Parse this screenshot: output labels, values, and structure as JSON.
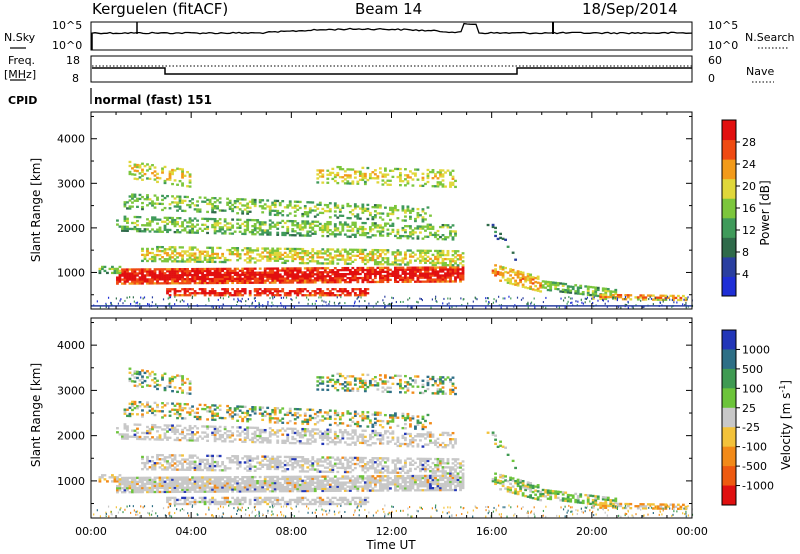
{
  "header": {
    "station": "Kerguelen (fitACF)",
    "beam": "Beam 14",
    "date": "18/Sep/2014"
  },
  "meta": {
    "nsky_label": "N.Sky",
    "nsky_ticks": [
      "10^5",
      "10^0"
    ],
    "nsearch_label": "N.Search",
    "nsearch_ticks": [
      "10^5",
      "10^0"
    ],
    "freq_label_line1": "Freq.",
    "freq_label_line2": "[MHz]",
    "freq_ticks": [
      "18",
      "8"
    ],
    "nave_label": "Nave",
    "nave_ticks": [
      "60",
      "0"
    ],
    "cpid_label": "CPID",
    "cpid_value": "normal (fast) 151"
  },
  "chart_data": [
    {
      "type": "heatmap",
      "name": "power",
      "ylabel": "Slant Range [km]",
      "yticks": [
        "1000",
        "2000",
        "3000",
        "4000"
      ],
      "ylim": [
        180,
        4600
      ],
      "colorbar_label": "Power [dB]",
      "colorbar_ticks": [
        "4",
        "8",
        "12",
        "16",
        "20",
        "24",
        "28"
      ],
      "colorbar_range": [
        0,
        32
      ],
      "palette": [
        "#1f2fd6",
        "#2a3fa0",
        "#2f6a4a",
        "#3f9a5a",
        "#7cc63c",
        "#e0d73a",
        "#f29a1a",
        "#ef4a12",
        "#e20f0f"
      ]
    },
    {
      "type": "heatmap",
      "name": "velocity",
      "ylabel": "Slant Range [km]",
      "yticks": [
        "1000",
        "2000",
        "3000",
        "4000"
      ],
      "ylim": [
        180,
        4600
      ],
      "colorbar_label": "Velocity [m s",
      "colorbar_label_sup": "-1",
      "colorbar_label_end": "]",
      "colorbar_ticks": [
        "1000",
        "500",
        "100",
        "25",
        "-25",
        "-100",
        "-500",
        "-1000"
      ],
      "palette": [
        "#2236b8",
        "#2e6f86",
        "#3f9a52",
        "#6cc43a",
        "#c8c8c8",
        "#f3c23a",
        "#f28a18",
        "#ee5a10",
        "#e01010"
      ],
      "xlabel": "Time UT",
      "xticks": [
        "00:00",
        "04:00",
        "08:00",
        "12:00",
        "16:00",
        "20:00",
        "00:00"
      ],
      "xlim_hours": [
        0,
        24
      ]
    }
  ]
}
